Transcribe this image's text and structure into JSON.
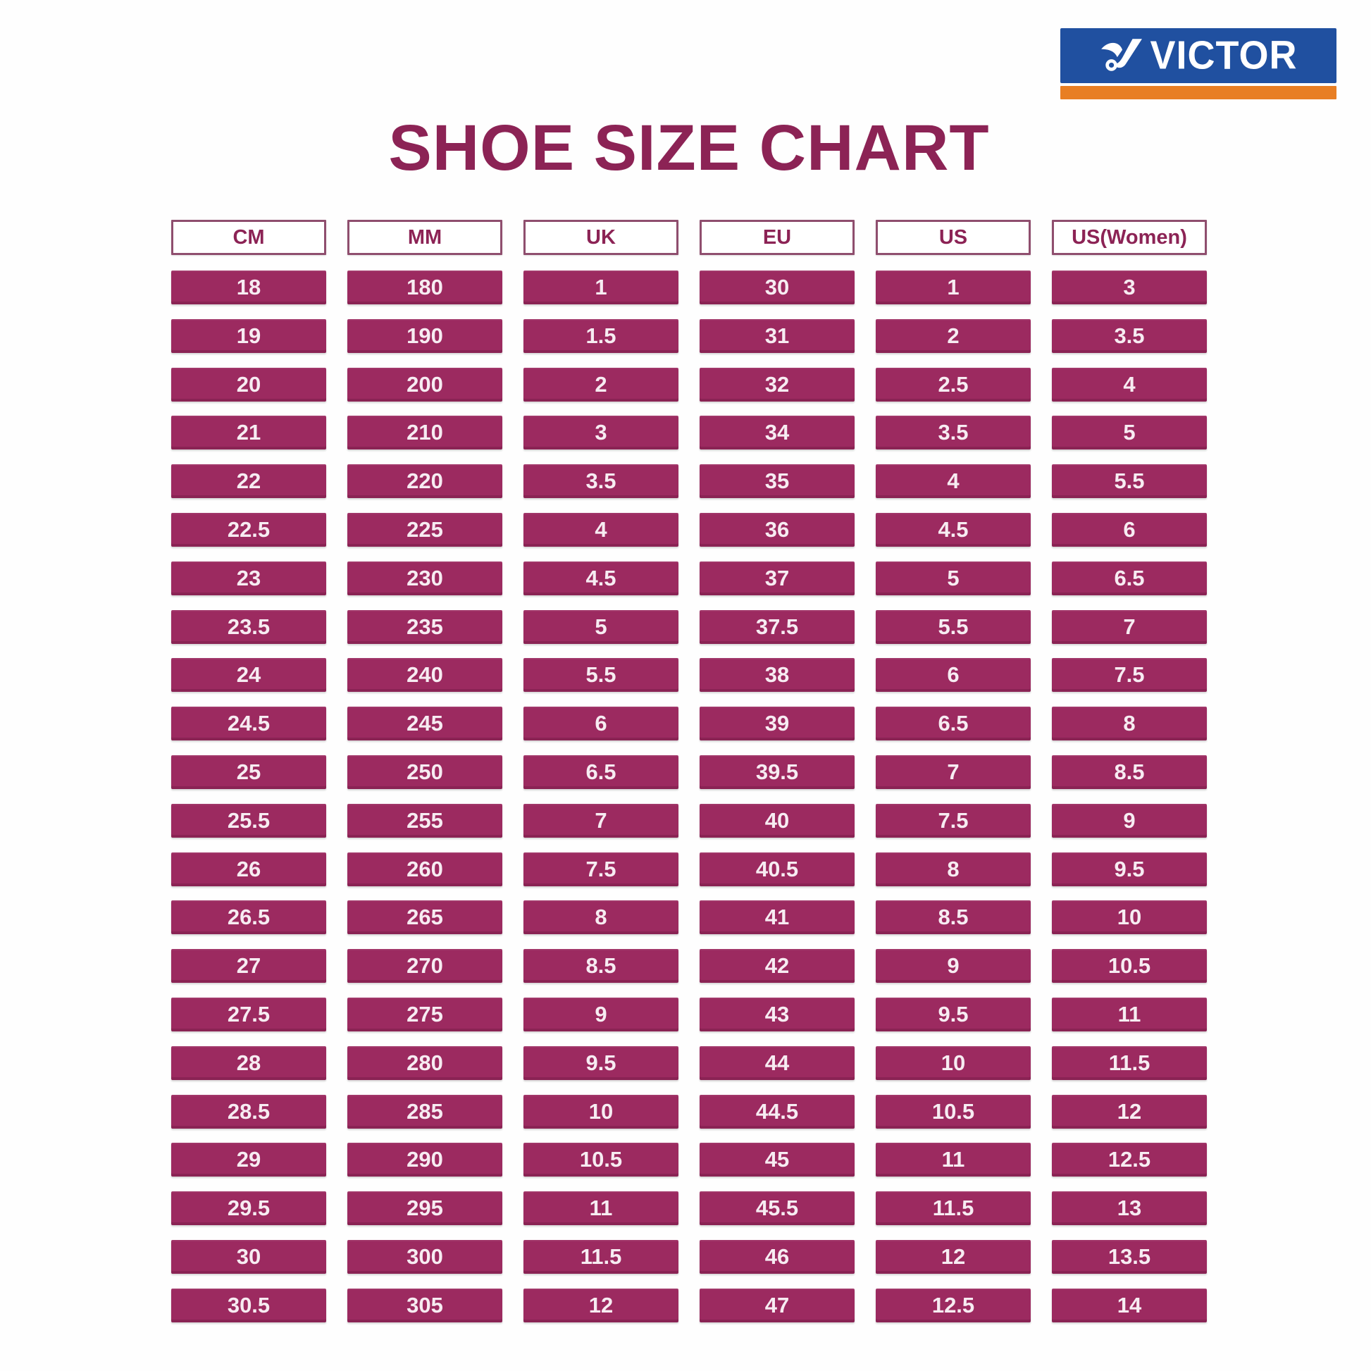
{
  "page": {
    "title": "SHOE SIZE CHART",
    "title_color": "#8C2355",
    "background": "#FEFEFE"
  },
  "logo": {
    "brand": "VICTOR",
    "blue": "#2050A0",
    "orange": "#E87E23",
    "icon": "victor-bird-icon"
  },
  "chart_data": {
    "type": "table",
    "title": "SHOE SIZE CHART",
    "columns": [
      "CM",
      "MM",
      "UK",
      "EU",
      "US",
      "US(Women)"
    ],
    "rows": [
      [
        "18",
        "180",
        "1",
        "30",
        "1",
        "3"
      ],
      [
        "19",
        "190",
        "1.5",
        "31",
        "2",
        "3.5"
      ],
      [
        "20",
        "200",
        "2",
        "32",
        "2.5",
        "4"
      ],
      [
        "21",
        "210",
        "3",
        "34",
        "3.5",
        "5"
      ],
      [
        "22",
        "220",
        "3.5",
        "35",
        "4",
        "5.5"
      ],
      [
        "22.5",
        "225",
        "4",
        "36",
        "4.5",
        "6"
      ],
      [
        "23",
        "230",
        "4.5",
        "37",
        "5",
        "6.5"
      ],
      [
        "23.5",
        "235",
        "5",
        "37.5",
        "5.5",
        "7"
      ],
      [
        "24",
        "240",
        "5.5",
        "38",
        "6",
        "7.5"
      ],
      [
        "24.5",
        "245",
        "6",
        "39",
        "6.5",
        "8"
      ],
      [
        "25",
        "250",
        "6.5",
        "39.5",
        "7",
        "8.5"
      ],
      [
        "25.5",
        "255",
        "7",
        "40",
        "7.5",
        "9"
      ],
      [
        "26",
        "260",
        "7.5",
        "40.5",
        "8",
        "9.5"
      ],
      [
        "26.5",
        "265",
        "8",
        "41",
        "8.5",
        "10"
      ],
      [
        "27",
        "270",
        "8.5",
        "42",
        "9",
        "10.5"
      ],
      [
        "27.5",
        "275",
        "9",
        "43",
        "9.5",
        "11"
      ],
      [
        "28",
        "280",
        "9.5",
        "44",
        "10",
        "11.5"
      ],
      [
        "28.5",
        "285",
        "10",
        "44.5",
        "10.5",
        "12"
      ],
      [
        "29",
        "290",
        "10.5",
        "45",
        "11",
        "12.5"
      ],
      [
        "29.5",
        "295",
        "11",
        "45.5",
        "11.5",
        "13"
      ],
      [
        "30",
        "300",
        "11.5",
        "46",
        "12",
        "13.5"
      ],
      [
        "30.5",
        "305",
        "12",
        "47",
        "12.5",
        "14"
      ]
    ],
    "cell_color": "#9C2A60",
    "cell_text_color": "#F7ECF2",
    "header_text_color": "#8C2355",
    "header_border_color": "#8F4E6E",
    "layout": {
      "grid": "off",
      "legend": "none"
    }
  }
}
